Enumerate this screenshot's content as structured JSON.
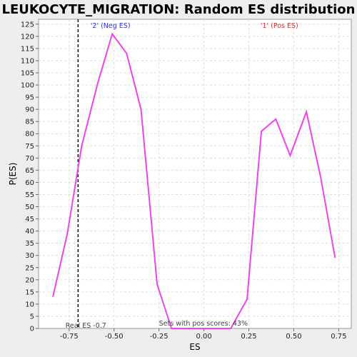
{
  "chart_data": {
    "type": "line",
    "title": "LEUKOCYTE_MIGRATION: Random ES distribution",
    "xlabel": "ES",
    "ylabel": "P(ES)",
    "xlim": [
      -0.92,
      0.82
    ],
    "ylim": [
      0,
      127
    ],
    "x_ticks": [
      -0.75,
      -0.5,
      -0.25,
      0.0,
      0.25,
      0.5,
      0.75
    ],
    "x_tick_labels": [
      "-0.75",
      "-0.50",
      "-0.25",
      "0.00",
      "0.25",
      "0.50",
      "0.75"
    ],
    "y_ticks": [
      0,
      5,
      10,
      15,
      20,
      25,
      30,
      35,
      40,
      45,
      50,
      55,
      60,
      65,
      70,
      75,
      80,
      85,
      90,
      95,
      100,
      105,
      110,
      115,
      120,
      125
    ],
    "grid": true,
    "series": [
      {
        "color": "#ee44ee",
        "x": [
          -0.84,
          -0.76,
          -0.68,
          -0.59,
          -0.51,
          -0.43,
          -0.35,
          -0.26,
          -0.18,
          -0.1,
          -0.01,
          0.07,
          0.15,
          0.24,
          0.32,
          0.4,
          0.48,
          0.57,
          0.65,
          0.73
        ],
        "y": [
          13,
          39,
          75,
          101,
          121,
          113,
          90,
          18,
          0,
          0,
          0,
          0,
          0,
          12,
          81,
          86,
          71,
          89,
          62,
          29
        ]
      }
    ],
    "real_es": -0.7,
    "annotations": {
      "neg_label": "'2' (Neg ES)",
      "pos_label": "'1' (Pos ES)",
      "real_es_label": "Real ES -0.7",
      "pos_score_label": "Sets with pos scores: 43%"
    },
    "colors": {
      "line": "#ee44ee",
      "neg_label": "#3333cc",
      "pos_label": "#cc3333",
      "grid": "#dddddd",
      "plot_bg": "#ffffff"
    }
  }
}
